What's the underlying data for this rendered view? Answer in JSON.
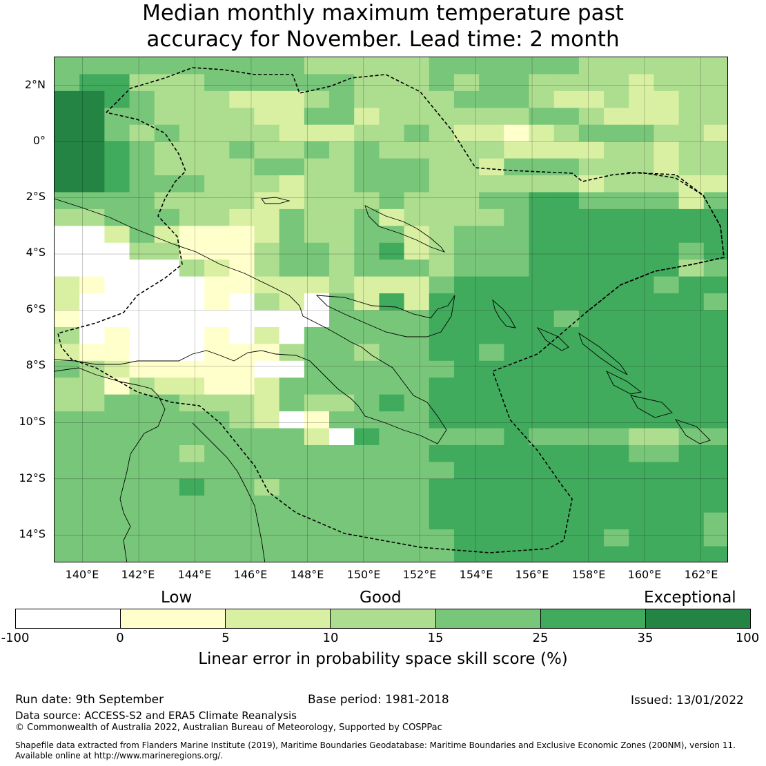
{
  "title_line1": "Median monthly maximum temperature past",
  "title_line2": "accuracy for November. Lead time: 2 month",
  "lat_ticks": [
    "2°N",
    "0°",
    "2°S",
    "4°S",
    "6°S",
    "8°S",
    "10°S",
    "12°S",
    "14°S"
  ],
  "lon_ticks": [
    "140°E",
    "142°E",
    "144°E",
    "146°E",
    "148°E",
    "150°E",
    "152°E",
    "154°E",
    "156°E",
    "158°E",
    "160°E",
    "162°E"
  ],
  "legend": {
    "categories": [
      "Low",
      "Good",
      "Exceptional"
    ],
    "ticks": [
      "-100",
      "0",
      "5",
      "10",
      "15",
      "25",
      "35",
      "100"
    ],
    "colors": [
      "#ffffff",
      "#ffffcc",
      "#d9f0a3",
      "#addd8e",
      "#78c679",
      "#41ab5d",
      "#238443"
    ],
    "title": "Linear error in probability space skill score (%)"
  },
  "footer": {
    "run_date": "Run date: 9th September",
    "base_period": "Base period: 1981-2018",
    "issued": "Issued: 13/01/2022",
    "data_source": "Data source: ACCESS-S2 and ERA5 Climate Reanalysis",
    "copyright": "© Commonwealth of Australia 2022, Australian Bureau of Meteorology, Supported by COSPPac",
    "shapefile_line1": "Shapefile data extracted from Flanders Marine Institute (2019), Maritime Boundaries Geodatabase: Maritime Boundaries and Exclusive Economic Zones (200NM), version 11.",
    "shapefile_line2": "Available online at http://www.marineregions.org/."
  },
  "map_grid": {
    "lon_range": [
      139,
      163
    ],
    "lat_range": [
      -15,
      3
    ],
    "cell_deg": 0.8,
    "rows_north_to_south": [
      "444444444433333444444333333",
      "455333444444333434433332333",
      "665433322234333344432232233",
      "664433332244233333344322233",
      "664343333222334322123444332",
      "665433343343433333222233233",
      "665433334433444332444333233",
      "665444333233444333333233322",
      "444433332233343334455444424",
      "334443322433423333455555555",
      "002421112433442344455555555",
      "000331113443452344455555545",
      "000003213443444344455555534",
      "210000112223222455555555455",
      "200000103204252555555555554",
      "100000000004444555554555555",
      "301000102044444555555555555",
      "211000111344344554555555555",
      "432111110044444455555555555",
      "331322112444444555555555555",
      "334443332433454555555555555",
      "444444432014444555555555555",
      "444444444420544444544443344",
      "444443444444444555555554455",
      "444444444444444455555555555",
      "444445443444444555555555555",
      "444444444444444555555555555",
      "444444444444444555555555554",
      "444444444444444455555545554",
      "444444444444444455555555555"
    ]
  }
}
